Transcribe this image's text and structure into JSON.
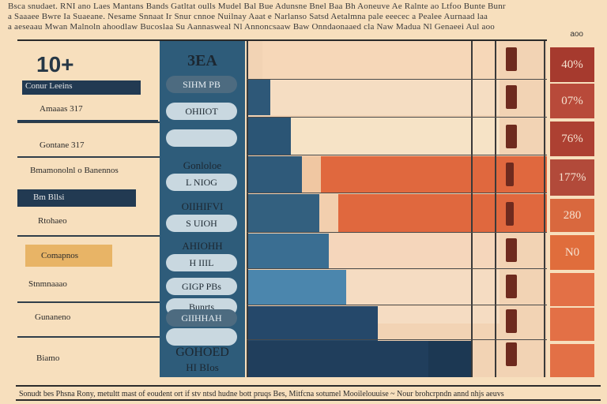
{
  "header": {
    "line1": "Bsca snudaet. RNI ano Laes Mantans Bands Gatltat oulls Mudel Bal Bue Adunsne Bnel Baa Bh Aoneuve Ae Ralnte ao Ltfoo Bunte Bunr",
    "line2": "a Saaaee Bwre Ia Suaeane. Nesame Snnaat Ir Snur cnnoe Nuilnay Aaat e Narlanso Satsd Aetalmna pale eeecec a Pealee Aurnaad laa",
    "line3": "a aeseaau Mwan Malnoln ahoodlaw Bucoslaa Su Aannasweal Nl Annoncsaaw Baw Onndaonaaed cla Naw Madua Nl Genaeei Aul aoo",
    "dots": "aoo"
  },
  "left": {
    "big_number": "10+",
    "rows": [
      "Conur Leeins",
      "Amaaas 317",
      "Gontane 317",
      "Bmamonolnl o Banennos",
      "Bm Bllsi",
      "Rtohaeo",
      "Comapnos",
      "Stnmnaaao",
      "Gunaneno",
      "Biamo"
    ]
  },
  "middle": {
    "items": [
      {
        "text": "3EA",
        "style": "text"
      },
      {
        "text": "SIHM PB",
        "style": "dark"
      },
      {
        "text": "OHIIOT",
        "style": "light"
      },
      {
        "text": "",
        "style": "light"
      },
      {
        "text": "Gonloloe",
        "style": "text"
      },
      {
        "text": "L NIOG",
        "style": "light"
      },
      {
        "text": "OIIHIFVI",
        "style": "text"
      },
      {
        "text": "S UIOH",
        "style": "light"
      },
      {
        "text": "AHIOHH",
        "style": "text"
      },
      {
        "text": "H IIIL",
        "style": "light"
      },
      {
        "text": "GIGP PBs",
        "style": "light"
      },
      {
        "text": "Bunrts",
        "style": "light"
      },
      {
        "text": "GIIHHAH",
        "style": "dark"
      },
      {
        "text": "",
        "style": "light"
      },
      {
        "text": "GOHOED",
        "style": "text"
      },
      {
        "text": "HI BIos",
        "style": "text"
      }
    ]
  },
  "right": {
    "values": [
      "40%",
      "07%",
      "76%",
      "177%",
      "280",
      "N0",
      "",
      "",
      "",
      ""
    ],
    "colors": [
      "#a63a2e",
      "#b84a3a",
      "#ad4032",
      "#b24a3a",
      "#d9683e",
      "#e06d3c",
      "#e37046",
      "#e37046",
      "#e37046",
      "#e37046"
    ]
  },
  "footer": {
    "text": "Sonudt bes Phsna Rony, metultt mast of eoudent ort if stv ntsd hudne bott pruqs Bes, Mitfcna sotumel Mooilelouuise  ~ Nour brohcrpndn annd nhjs aeuvs"
  },
  "colors": {
    "background": "#f7dfbd",
    "navy": "#223a52",
    "steel": "#2e5c7a",
    "orange": "#e0683e",
    "light_blue": "#4b86ad"
  }
}
